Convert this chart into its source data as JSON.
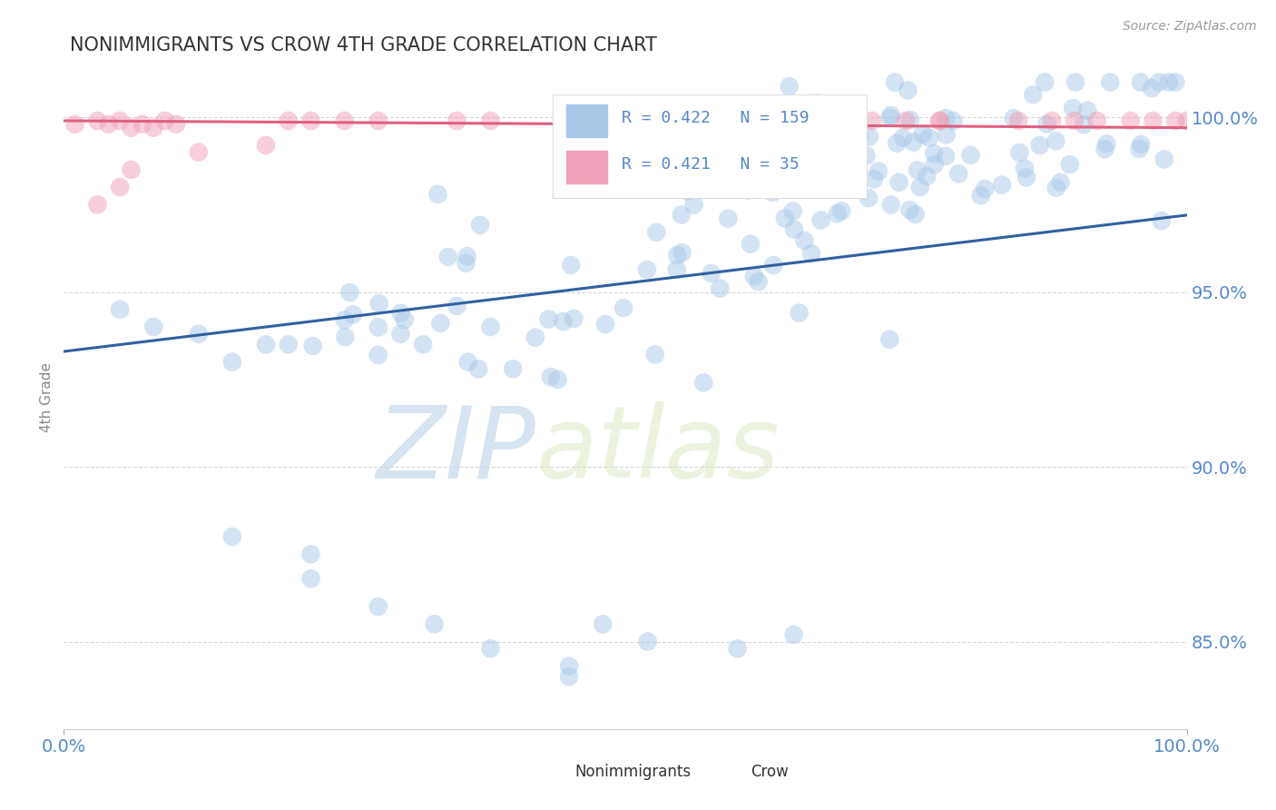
{
  "title": "NONIMMIGRANTS VS CROW 4TH GRADE CORRELATION CHART",
  "source_text": "Source: ZipAtlas.com",
  "ylabel": "4th Grade",
  "watermark_zip": "ZIP",
  "watermark_atlas": "atlas",
  "xlim": [
    0.0,
    1.0
  ],
  "ylim": [
    0.825,
    1.015
  ],
  "yticks": [
    0.85,
    0.9,
    0.95,
    1.0
  ],
  "ytick_labels": [
    "85.0%",
    "90.0%",
    "95.0%",
    "100.0%"
  ],
  "blue_R": 0.422,
  "blue_N": 159,
  "pink_R": 0.421,
  "pink_N": 35,
  "blue_color": "#a8c8e8",
  "pink_color": "#f0a0b8",
  "blue_line_color": "#3060a0",
  "pink_line_color": "#e06080",
  "legend_label_blue": "Nonimmigrants",
  "legend_label_pink": "Crow",
  "title_color": "#333333",
  "axis_label_color": "#888888",
  "tick_color": "#5588cc",
  "grid_color": "#cccccc",
  "background_color": "#ffffff",
  "blue_line_start_y": 0.933,
  "blue_line_end_y": 0.972,
  "pink_line_start_y": 0.999,
  "pink_line_end_y": 0.997
}
